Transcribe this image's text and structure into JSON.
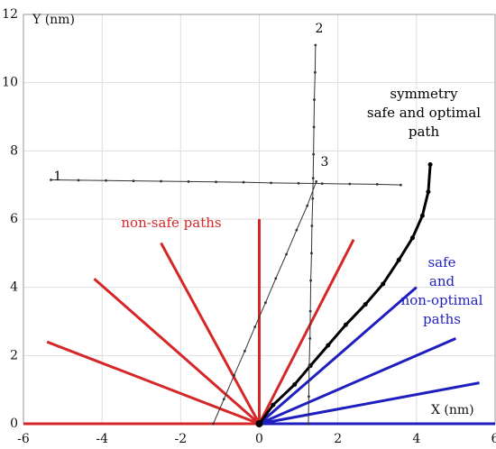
{
  "chart_data": {
    "type": "line",
    "xlabel": "X (nm)",
    "ylabel": "Y (nm)",
    "xlim": [
      -6,
      6
    ],
    "ylim": [
      0,
      12
    ],
    "xticks": [
      -6,
      -4,
      -2,
      0,
      2,
      4,
      6
    ],
    "yticks": [
      0,
      2,
      4,
      6,
      8,
      10,
      12
    ],
    "grid": true,
    "series": [
      {
        "color": "#d62728",
        "width": 3,
        "markers": false,
        "x": [
          0,
          -6
        ],
        "values": [
          0,
          0
        ]
      },
      {
        "color": "#d62728",
        "width": 3,
        "markers": false,
        "x": [
          0,
          -5.4
        ],
        "values": [
          0,
          2.4
        ]
      },
      {
        "color": "#d62728",
        "width": 3,
        "markers": false,
        "x": [
          0,
          -4.2
        ],
        "values": [
          0,
          4.25
        ]
      },
      {
        "color": "#d62728",
        "width": 3,
        "markers": false,
        "x": [
          0,
          -2.5
        ],
        "values": [
          0,
          5.3
        ]
      },
      {
        "color": "#d62728",
        "width": 3,
        "markers": false,
        "x": [
          0,
          0
        ],
        "values": [
          0,
          6
        ]
      },
      {
        "color": "#d62728",
        "width": 3,
        "markers": false,
        "x": [
          0,
          2.4
        ],
        "values": [
          0,
          5.4
        ]
      },
      {
        "color": "#1f1fbf",
        "width": 3,
        "markers": false,
        "x": [
          0,
          4
        ],
        "values": [
          0,
          4
        ]
      },
      {
        "color": "#1f1fbf",
        "width": 3,
        "markers": false,
        "x": [
          0,
          5
        ],
        "values": [
          0,
          2.5
        ]
      },
      {
        "color": "#1f1fbf",
        "width": 3,
        "markers": false,
        "x": [
          0,
          5.6
        ],
        "values": [
          0,
          1.2
        ]
      },
      {
        "color": "#1f1fbf",
        "width": 3,
        "markers": false,
        "x": [
          0,
          6
        ],
        "values": [
          0,
          0
        ]
      },
      {
        "color": "#000000",
        "width": 3,
        "markers": true,
        "x": [
          0,
          0.35,
          0.9,
          1.3,
          1.75,
          2.2,
          2.7,
          3.15,
          3.55,
          3.9,
          4.15,
          4.3,
          4.35
        ],
        "values": [
          0,
          0.55,
          1.15,
          1.7,
          2.3,
          2.9,
          3.5,
          4.1,
          4.8,
          5.45,
          6.1,
          6.8,
          7.6
        ]
      },
      {
        "color": "#333333",
        "width": 1,
        "markers": true,
        "x": [
          -5.3,
          -4.6,
          -3.9,
          -3.2,
          -2.5,
          -1.8,
          -1.1,
          -0.4,
          0.3,
          1.0,
          1.6,
          2.3,
          3.0,
          3.6
        ],
        "values": [
          7.15,
          7.14,
          7.13,
          7.12,
          7.11,
          7.1,
          7.09,
          7.08,
          7.06,
          7.05,
          7.04,
          7.03,
          7.02,
          7.0
        ]
      },
      {
        "color": "#333333",
        "width": 1,
        "markers": true,
        "x": [
          1.25,
          1.26,
          1.27,
          1.29,
          1.3,
          1.31,
          1.33,
          1.34,
          1.36,
          1.37,
          1.38,
          1.39,
          1.4,
          1.42,
          1.43
        ],
        "values": [
          0,
          0.8,
          1.7,
          2.5,
          3.3,
          4.2,
          5.0,
          5.8,
          6.6,
          7.2,
          7.9,
          8.7,
          9.5,
          10.3,
          11.1
        ]
      },
      {
        "color": "#333333",
        "width": 1,
        "markers": true,
        "x": [
          -1.17,
          -0.9,
          -0.64,
          -0.37,
          -0.11,
          0.16,
          0.42,
          0.69,
          0.95,
          1.22,
          1.45
        ],
        "values": [
          0,
          0.72,
          1.42,
          2.13,
          2.84,
          3.55,
          4.26,
          4.97,
          5.68,
          6.39,
          7.1
        ]
      }
    ],
    "annotations": [
      {
        "color": "#d62728",
        "lines": [
          "non-safe paths"
        ]
      },
      {
        "color": "#000000",
        "lines": [
          "symmetry",
          "safe and optimal",
          "path"
        ]
      },
      {
        "color": "#1f1fbf",
        "lines": [
          "safe",
          "and",
          "non-optimal",
          "paths"
        ]
      },
      {
        "color": "#000000",
        "lines": [
          "1"
        ]
      },
      {
        "color": "#000000",
        "lines": [
          "2"
        ]
      },
      {
        "color": "#000000",
        "lines": [
          "3"
        ]
      }
    ]
  }
}
